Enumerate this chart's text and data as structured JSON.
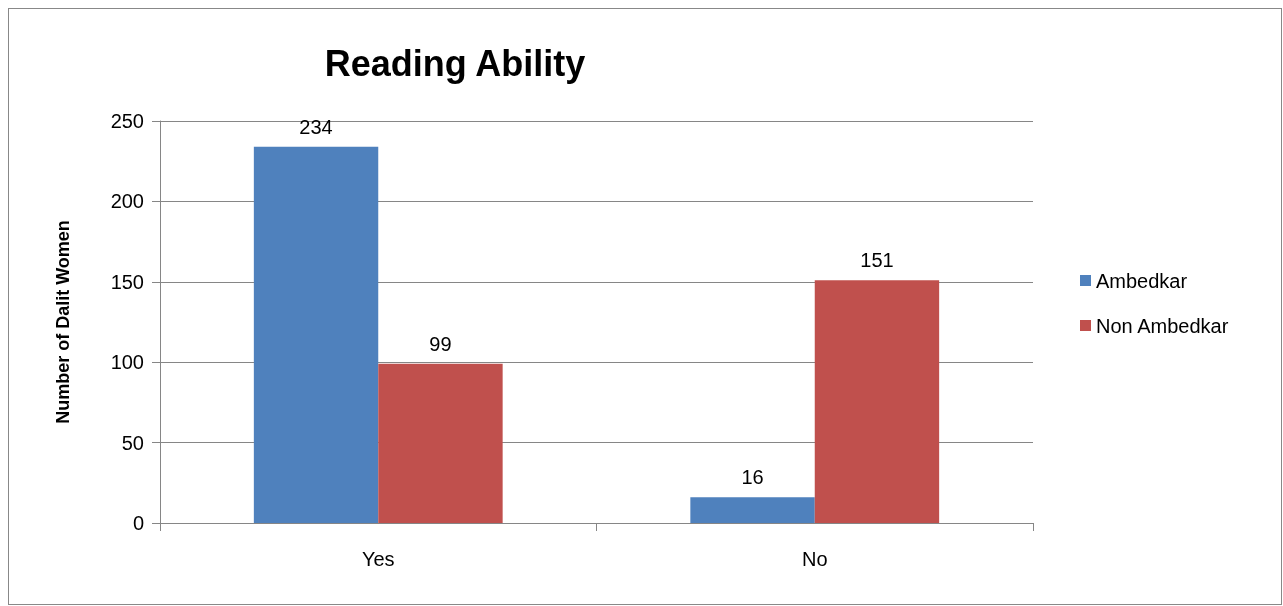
{
  "chart_data": {
    "type": "bar",
    "title": "Reading Ability",
    "ylabel": "Number of Dalit Women",
    "categories": [
      "Yes",
      "No"
    ],
    "series": [
      {
        "name": "Ambedkar",
        "color": "#4f81bd",
        "values": [
          234,
          16
        ]
      },
      {
        "name": "Non Ambedkar",
        "color": "#c0504d",
        "values": [
          99,
          151
        ]
      }
    ],
    "ylim": [
      0,
      250
    ],
    "yticks": [
      0,
      50,
      100,
      150,
      200,
      250
    ],
    "grid": "y",
    "legend": "right",
    "data_labels": true
  }
}
